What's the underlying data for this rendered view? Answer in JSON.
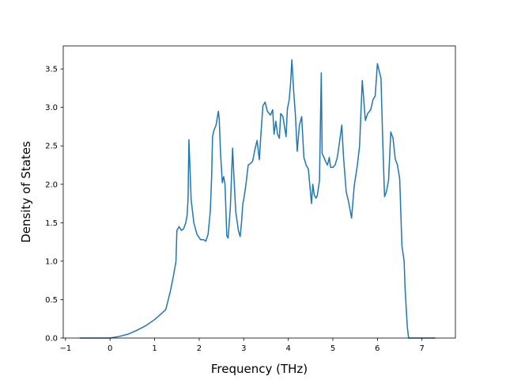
{
  "chart_data": {
    "type": "line",
    "title": "",
    "xlabel": "Frequency (THz)",
    "ylabel": "Density of States",
    "xlim": [
      -1.05,
      7.75
    ],
    "ylim": [
      0.0,
      3.8
    ],
    "x_ticks": [
      -1,
      0,
      1,
      2,
      3,
      4,
      5,
      6,
      7
    ],
    "x_tick_labels": [
      "−1",
      "0",
      "1",
      "2",
      "3",
      "4",
      "5",
      "6",
      "7"
    ],
    "y_ticks": [
      0.0,
      0.5,
      1.0,
      1.5,
      2.0,
      2.5,
      3.0,
      3.5
    ],
    "y_tick_labels": [
      "0.0",
      "0.5",
      "1.0",
      "1.5",
      "2.0",
      "2.5",
      "3.0",
      "3.5"
    ],
    "grid": false,
    "legend": "none",
    "series": [
      {
        "color": "#1f77b4",
        "x": [
          -0.68,
          0.0,
          0.2,
          0.4,
          0.6,
          0.8,
          1.0,
          1.1,
          1.25,
          1.35,
          1.42,
          1.48,
          1.5,
          1.55,
          1.6,
          1.65,
          1.7,
          1.73,
          1.75,
          1.77,
          1.82,
          1.88,
          1.95,
          2.03,
          2.1,
          2.15,
          2.2,
          2.25,
          2.28,
          2.3,
          2.33,
          2.38,
          2.43,
          2.45,
          2.48,
          2.52,
          2.55,
          2.58,
          2.62,
          2.65,
          2.7,
          2.75,
          2.78,
          2.82,
          2.88,
          2.92,
          2.95,
          2.98,
          3.0,
          3.05,
          3.1,
          3.15,
          3.2,
          3.25,
          3.3,
          3.35,
          3.38,
          3.43,
          3.48,
          3.53,
          3.6,
          3.65,
          3.68,
          3.72,
          3.76,
          3.8,
          3.83,
          3.88,
          3.95,
          3.98,
          4.02,
          4.05,
          4.08,
          4.12,
          4.16,
          4.2,
          4.25,
          4.3,
          4.35,
          4.4,
          4.45,
          4.52,
          4.55,
          4.58,
          4.62,
          4.65,
          4.7,
          4.74,
          4.76,
          4.8,
          4.85,
          4.88,
          4.92,
          4.95,
          5.0,
          5.05,
          5.1,
          5.15,
          5.2,
          5.24,
          5.3,
          5.35,
          5.42,
          5.48,
          5.55,
          5.6,
          5.66,
          5.7,
          5.73,
          5.78,
          5.85,
          5.9,
          5.95,
          6.0,
          6.05,
          6.08,
          6.12,
          6.16,
          6.2,
          6.25,
          6.3,
          6.35,
          6.4,
          6.45,
          6.5,
          6.55,
          6.6,
          6.62,
          6.65,
          6.67,
          6.7,
          7.3
        ],
        "values": [
          0.0,
          0.0,
          0.02,
          0.05,
          0.1,
          0.16,
          0.24,
          0.29,
          0.37,
          0.6,
          0.8,
          1.0,
          1.4,
          1.45,
          1.4,
          1.42,
          1.5,
          1.6,
          1.8,
          2.58,
          1.8,
          1.5,
          1.35,
          1.28,
          1.28,
          1.26,
          1.35,
          1.65,
          2.1,
          2.62,
          2.7,
          2.77,
          2.95,
          2.85,
          2.4,
          2.02,
          2.1,
          2.0,
          1.33,
          1.3,
          1.7,
          2.47,
          2.1,
          1.65,
          1.4,
          1.32,
          1.5,
          1.75,
          1.8,
          2.0,
          2.25,
          2.27,
          2.3,
          2.45,
          2.57,
          2.32,
          2.6,
          3.02,
          3.07,
          2.95,
          2.9,
          2.97,
          2.65,
          2.82,
          2.65,
          2.6,
          2.92,
          2.88,
          2.62,
          2.98,
          3.1,
          3.3,
          3.62,
          3.22,
          2.9,
          2.43,
          2.77,
          2.88,
          2.35,
          2.25,
          2.2,
          1.75,
          2.0,
          1.87,
          1.82,
          1.85,
          2.05,
          3.45,
          2.4,
          2.35,
          2.28,
          2.25,
          2.35,
          2.22,
          2.22,
          2.25,
          2.35,
          2.55,
          2.77,
          2.35,
          1.9,
          1.78,
          1.56,
          1.98,
          2.25,
          2.5,
          3.35,
          3.05,
          2.83,
          2.92,
          2.97,
          3.1,
          3.15,
          3.57,
          3.45,
          3.38,
          2.55,
          1.84,
          1.9,
          2.05,
          2.68,
          2.6,
          2.33,
          2.25,
          2.07,
          1.2,
          1.0,
          0.65,
          0.35,
          0.15,
          0.0,
          0.0
        ]
      }
    ]
  }
}
